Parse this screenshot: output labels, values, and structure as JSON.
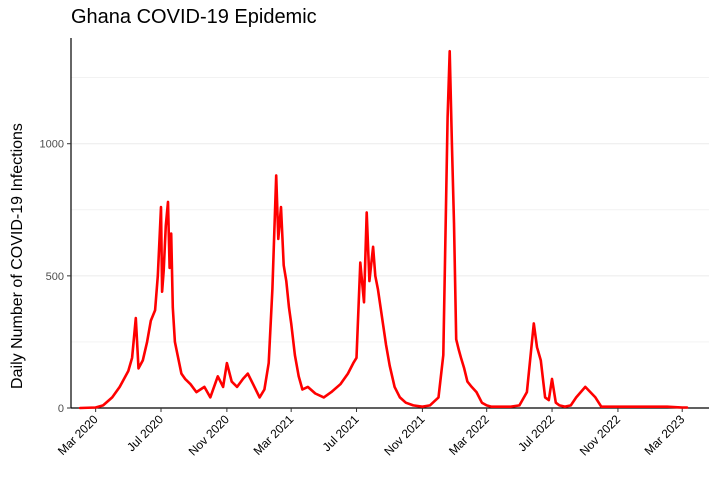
{
  "chart_data": {
    "type": "line",
    "title": "Ghana COVID-19 Epidemic",
    "xlabel": "",
    "ylabel": "Daily Number of COVID-19 Infections",
    "xlim": [
      "2020-01-15",
      "2023-04-20"
    ],
    "ylim": [
      0,
      1400
    ],
    "yticks": [
      0,
      500,
      1000
    ],
    "ytick_labels": [
      "0",
      "500",
      "1000"
    ],
    "xticks": [
      "2020-03-01",
      "2020-07-01",
      "2020-11-01",
      "2021-03-01",
      "2021-07-01",
      "2021-11-01",
      "2022-03-01",
      "2022-07-01",
      "2022-11-01",
      "2023-03-01"
    ],
    "xtick_labels": [
      "Mar 2020",
      "Jul 2020",
      "Nov 2020",
      "Mar 2021",
      "Jul 2021",
      "Nov 2021",
      "Mar 2022",
      "Jul 2022",
      "Nov 2022",
      "Mar 2023"
    ],
    "grid": true,
    "line_color": "#ff0000",
    "series": [
      {
        "x": [
          "2020-02-01",
          "2020-03-01",
          "2020-03-15",
          "2020-04-01",
          "2020-04-15",
          "2020-05-01",
          "2020-05-08",
          "2020-05-15",
          "2020-05-20",
          "2020-05-28",
          "2020-06-05",
          "2020-06-12",
          "2020-06-20",
          "2020-06-25",
          "2020-07-01",
          "2020-07-03",
          "2020-07-06",
          "2020-07-10",
          "2020-07-14",
          "2020-07-17",
          "2020-07-20",
          "2020-07-23",
          "2020-07-27",
          "2020-08-01",
          "2020-08-08",
          "2020-08-15",
          "2020-08-25",
          "2020-09-05",
          "2020-09-20",
          "2020-10-01",
          "2020-10-15",
          "2020-10-25",
          "2020-11-01",
          "2020-11-10",
          "2020-11-20",
          "2020-12-01",
          "2020-12-10",
          "2020-12-20",
          "2021-01-01",
          "2021-01-10",
          "2021-01-18",
          "2021-01-25",
          "2021-02-01",
          "2021-02-05",
          "2021-02-10",
          "2021-02-15",
          "2021-02-20",
          "2021-02-25",
          "2021-03-01",
          "2021-03-08",
          "2021-03-15",
          "2021-03-22",
          "2021-04-01",
          "2021-04-15",
          "2021-05-01",
          "2021-05-15",
          "2021-06-01",
          "2021-06-15",
          "2021-06-25",
          "2021-07-01",
          "2021-07-08",
          "2021-07-15",
          "2021-07-20",
          "2021-07-25",
          "2021-08-01",
          "2021-08-05",
          "2021-08-10",
          "2021-08-15",
          "2021-08-20",
          "2021-08-25",
          "2021-09-01",
          "2021-09-10",
          "2021-09-20",
          "2021-10-01",
          "2021-10-15",
          "2021-11-01",
          "2021-11-15",
          "2021-12-01",
          "2021-12-10",
          "2021-12-18",
          "2021-12-22",
          "2021-12-26",
          "2021-12-30",
          "2022-01-03",
          "2022-01-08",
          "2022-01-12",
          "2022-01-18",
          "2022-01-24",
          "2022-02-01",
          "2022-02-10",
          "2022-02-20",
          "2022-03-01",
          "2022-03-10",
          "2022-03-20",
          "2022-04-01",
          "2022-04-15",
          "2022-05-01",
          "2022-05-15",
          "2022-05-28",
          "2022-06-03",
          "2022-06-10",
          "2022-06-18",
          "2022-06-25",
          "2022-07-01",
          "2022-07-08",
          "2022-07-15",
          "2022-07-25",
          "2022-08-05",
          "2022-08-15",
          "2022-09-01",
          "2022-09-20",
          "2022-10-01",
          "2022-10-10",
          "2022-10-20",
          "2022-11-01",
          "2022-11-15",
          "2022-12-01",
          "2023-01-01",
          "2023-02-01",
          "2023-03-01",
          "2023-03-10"
        ],
        "values": [
          0,
          2,
          10,
          40,
          80,
          140,
          190,
          340,
          150,
          180,
          250,
          330,
          370,
          500,
          760,
          440,
          520,
          690,
          780,
          530,
          660,
          380,
          250,
          200,
          130,
          110,
          90,
          60,
          80,
          40,
          120,
          80,
          170,
          100,
          80,
          110,
          130,
          90,
          40,
          70,
          170,
          450,
          880,
          640,
          760,
          540,
          480,
          380,
          320,
          200,
          120,
          70,
          80,
          55,
          40,
          60,
          90,
          130,
          170,
          190,
          550,
          400,
          740,
          480,
          610,
          500,
          450,
          380,
          310,
          240,
          160,
          80,
          40,
          20,
          10,
          5,
          10,
          40,
          200,
          1100,
          1350,
          1000,
          700,
          260,
          220,
          190,
          150,
          100,
          80,
          60,
          20,
          10,
          5,
          5,
          5,
          5,
          10,
          60,
          320,
          230,
          180,
          40,
          30,
          110,
          20,
          10,
          5,
          10,
          40,
          80,
          40,
          5,
          5,
          5,
          5,
          5,
          5,
          5,
          5,
          2,
          2
        ]
      }
    ]
  }
}
